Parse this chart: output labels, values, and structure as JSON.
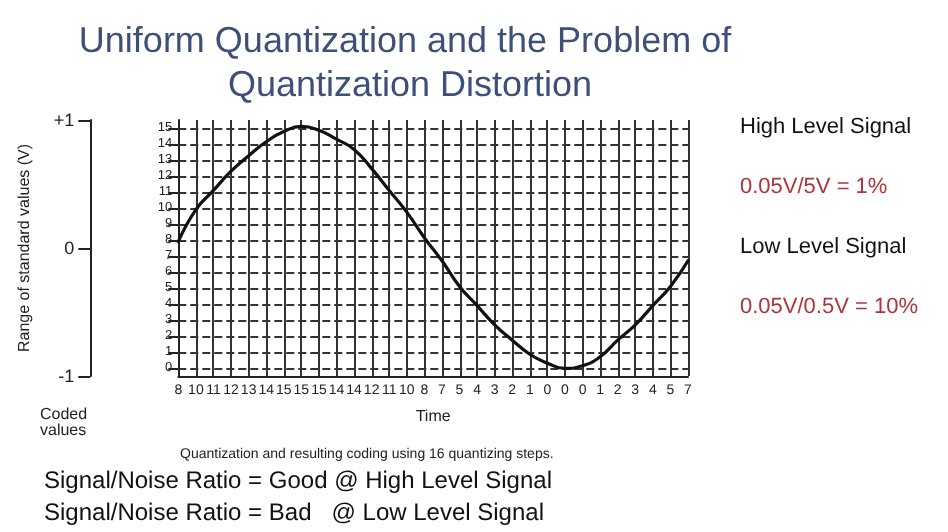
{
  "chart_data": {
    "type": "line",
    "title": "Uniform Quantization and the Problem of Quantization Distortion",
    "xlabel": "Time",
    "ylabel": "Range of standard values (V)",
    "categories": [
      "8",
      "10",
      "11",
      "12",
      "13",
      "14",
      "15",
      "15",
      "15",
      "14",
      "14",
      "12",
      "11",
      "10",
      "8",
      "7",
      "5",
      "4",
      "3",
      "2",
      "1",
      "0",
      "0",
      "0",
      "1",
      "2",
      "3",
      "4",
      "5",
      "7"
    ],
    "series": [
      {
        "color": "#111111",
        "values": [
          0.05,
          0.3,
          0.45,
          0.6,
          0.72,
          0.83,
          0.91,
          0.95,
          0.92,
          0.85,
          0.77,
          0.62,
          0.45,
          0.28,
          0.08,
          -0.1,
          -0.3,
          -0.45,
          -0.6,
          -0.72,
          -0.83,
          -0.9,
          -0.94,
          -0.92,
          -0.85,
          -0.72,
          -0.6,
          -0.45,
          -0.3,
          -0.1
        ]
      }
    ],
    "ylim": [
      -1,
      1
    ],
    "yticks": [
      {
        "value": -1,
        "label": "-1"
      },
      0,
      {
        "value": 1,
        "label": "+1"
      }
    ],
    "y2lim": [
      -0.5,
      15.5
    ],
    "y2ticks": [
      0,
      1,
      2,
      3,
      4,
      5,
      6,
      7,
      8,
      9,
      10,
      11,
      12,
      13,
      14,
      15
    ],
    "grid": "x",
    "marker": "none",
    "line_style": "solid",
    "ref_lines": [
      {
        "axis": "y2",
        "value": 0,
        "line_style": "dashed"
      },
      {
        "axis": "y2",
        "value": 1,
        "line_style": "dashed"
      },
      {
        "axis": "y2",
        "value": 2,
        "line_style": "dashed"
      },
      {
        "axis": "y2",
        "value": 3,
        "line_style": "dashed"
      },
      {
        "axis": "y2",
        "value": 4,
        "line_style": "dashed"
      },
      {
        "axis": "y2",
        "value": 5,
        "line_style": "dashed"
      },
      {
        "axis": "y2",
        "value": 6,
        "line_style": "dashed"
      },
      {
        "axis": "y2",
        "value": 7,
        "line_style": "dashed"
      },
      {
        "axis": "y2",
        "value": 8,
        "line_style": "dashed"
      },
      {
        "axis": "y2",
        "value": 9,
        "line_style": "dashed"
      },
      {
        "axis": "y2",
        "value": 10,
        "line_style": "dashed"
      },
      {
        "axis": "y2",
        "value": 11,
        "line_style": "dashed"
      },
      {
        "axis": "y2",
        "value": 12,
        "line_style": "dashed"
      },
      {
        "axis": "y2",
        "value": 13,
        "line_style": "dashed"
      },
      {
        "axis": "y2",
        "value": 14,
        "line_style": "dashed"
      },
      {
        "axis": "y2",
        "value": 15,
        "line_style": "dashed"
      }
    ],
    "annotations": [
      "Coded values",
      "Quantization and resulting coding using 16 quantizing steps.",
      "High Level Signal",
      "0.05V/5V = 1%",
      "Low Level Signal",
      "0.05V/0.5V = 10%",
      "Signal/Noise Ratio = Good @ High Level Signal",
      "Signal/Noise Ratio = Bad   @ Low Level Signal"
    ]
  }
}
